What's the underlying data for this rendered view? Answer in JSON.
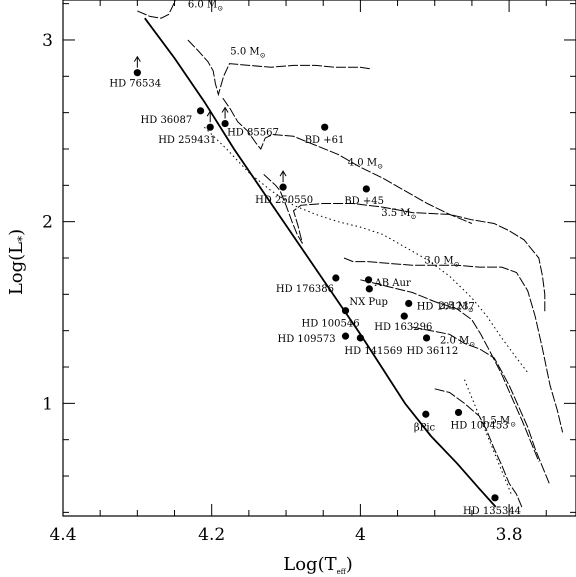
{
  "chart_data": {
    "type": "scatter",
    "title": "",
    "xlabel": "Log(T",
    "xlabel_sub": "eff",
    "xlabel_close": ")",
    "ylabel": "Log(L",
    "ylabel_sub": "*",
    "ylabel_close": ")",
    "xlim": [
      4.4,
      3.71
    ],
    "ylim": [
      0.38,
      3.22
    ],
    "x_reversed": true,
    "grid": false,
    "x_ticks": [
      {
        "value": 4.4,
        "label": "4.4"
      },
      {
        "value": 4.2,
        "label": "4.2"
      },
      {
        "value": 4.0,
        "label": "4"
      },
      {
        "value": 3.8,
        "label": "3.8"
      }
    ],
    "y_ticks": [
      {
        "value": 1,
        "label": "1"
      },
      {
        "value": 2,
        "label": "2"
      },
      {
        "value": 3,
        "label": "3"
      }
    ],
    "stars": [
      {
        "name": "HD 76534",
        "x": 4.3,
        "y": 2.82,
        "arrow": true
      },
      {
        "name": "HD 36087",
        "x": 4.215,
        "y": 2.61,
        "arrow": false
      },
      {
        "name": "HD 259431",
        "x": 4.202,
        "y": 2.52,
        "arrow": true
      },
      {
        "name": "HD 85567",
        "x": 4.182,
        "y": 2.54,
        "arrow": true
      },
      {
        "name": "BD +61",
        "x": 4.048,
        "y": 2.52,
        "arrow": false
      },
      {
        "name": "HD 250550",
        "x": 4.104,
        "y": 2.19,
        "arrow": true
      },
      {
        "name": "BD +45",
        "x": 3.992,
        "y": 2.18,
        "arrow": false
      },
      {
        "name": "HD 176386",
        "x": 4.033,
        "y": 1.69,
        "arrow": false
      },
      {
        "name": "AB Aur",
        "x": 3.989,
        "y": 1.68,
        "arrow": false
      },
      {
        "name": "NX Pup",
        "x": 3.988,
        "y": 1.63,
        "arrow": false
      },
      {
        "name": "HD 104237",
        "x": 3.935,
        "y": 1.55,
        "arrow": false
      },
      {
        "name": "HD 100546",
        "x": 4.02,
        "y": 1.51,
        "arrow": false
      },
      {
        "name": "HD 163296",
        "x": 3.941,
        "y": 1.48,
        "arrow": false
      },
      {
        "name": "HD 109573",
        "x": 4.02,
        "y": 1.37,
        "arrow": false
      },
      {
        "name": "HD 141569",
        "x": 4.0,
        "y": 1.36,
        "arrow": false
      },
      {
        "name": "HD 36112",
        "x": 3.911,
        "y": 1.36,
        "arrow": false
      },
      {
        "name": "βPic",
        "x": 3.912,
        "y": 0.94,
        "arrow": false
      },
      {
        "name": "HD 100453",
        "x": 3.868,
        "y": 0.95,
        "arrow": false
      },
      {
        "name": "HD 135344",
        "x": 3.819,
        "y": 0.48,
        "arrow": false
      }
    ],
    "tracks": [
      {
        "mass": "6.0 M",
        "sun": "⊙",
        "points": [
          [
            4.3,
            3.16
          ],
          [
            4.283,
            3.13
          ],
          [
            4.268,
            3.12
          ],
          [
            4.258,
            3.14
          ],
          [
            4.252,
            3.19
          ],
          [
            4.249,
            3.22
          ]
        ]
      },
      {
        "mass": "5.0 M",
        "sun": "⊙",
        "points": [
          [
            4.232,
            3.0
          ],
          [
            4.218,
            2.94
          ],
          [
            4.205,
            2.88
          ],
          [
            4.198,
            2.83
          ],
          [
            4.195,
            2.76
          ],
          [
            4.191,
            2.7
          ],
          [
            4.184,
            2.8
          ],
          [
            4.176,
            2.87
          ],
          [
            4.15,
            2.86
          ],
          [
            4.12,
            2.85
          ],
          [
            4.09,
            2.86
          ],
          [
            4.06,
            2.86
          ],
          [
            4.035,
            2.85
          ],
          [
            4.0,
            2.85
          ],
          [
            3.985,
            2.84
          ]
        ]
      },
      {
        "mass": "4.0 M",
        "sun": "⊙",
        "points": [
          [
            4.185,
            2.68
          ],
          [
            4.175,
            2.62
          ],
          [
            4.165,
            2.55
          ],
          [
            4.152,
            2.5
          ],
          [
            4.14,
            2.43
          ],
          [
            4.134,
            2.4
          ],
          [
            4.128,
            2.46
          ],
          [
            4.118,
            2.48
          ],
          [
            4.09,
            2.47
          ],
          [
            4.06,
            2.42
          ],
          [
            4.03,
            2.37
          ],
          [
            4.0,
            2.3
          ],
          [
            3.97,
            2.24
          ],
          [
            3.94,
            2.17
          ],
          [
            3.91,
            2.1
          ],
          [
            3.88,
            2.04
          ],
          [
            3.85,
            1.99
          ]
        ]
      },
      {
        "mass": "3.5 M",
        "sun": "⊙",
        "points": [
          [
            4.13,
            2.26
          ],
          [
            4.122,
            2.23
          ],
          [
            4.114,
            2.2
          ],
          [
            4.108,
            2.17
          ],
          [
            4.1,
            2.09
          ],
          [
            4.092,
            2.0
          ],
          [
            4.085,
            1.93
          ],
          [
            4.078,
            1.88
          ],
          [
            4.084,
            1.98
          ],
          [
            4.09,
            2.06
          ],
          [
            4.08,
            2.09
          ],
          [
            4.05,
            2.1
          ],
          [
            4.01,
            2.1
          ],
          [
            3.97,
            2.08
          ],
          [
            3.93,
            2.05
          ],
          [
            3.88,
            2.04
          ],
          [
            3.85,
            2.01
          ],
          [
            3.82,
            1.99
          ],
          [
            3.8,
            1.95
          ],
          [
            3.78,
            1.9
          ],
          [
            3.77,
            1.85
          ],
          [
            3.76,
            1.8
          ],
          [
            3.755,
            1.7
          ],
          [
            3.752,
            1.6
          ],
          [
            3.752,
            1.5
          ]
        ]
      },
      {
        "mass": "3.0 M",
        "sun": "⊙",
        "points": [
          [
            4.022,
            1.8
          ],
          [
            4.01,
            1.78
          ],
          [
            3.99,
            1.78
          ],
          [
            3.96,
            1.77
          ],
          [
            3.93,
            1.76
          ],
          [
            3.9,
            1.76
          ],
          [
            3.87,
            1.76
          ],
          [
            3.84,
            1.75
          ],
          [
            3.81,
            1.75
          ],
          [
            3.79,
            1.72
          ],
          [
            3.775,
            1.62
          ],
          [
            3.765,
            1.48
          ],
          [
            3.755,
            1.3
          ],
          [
            3.745,
            1.1
          ],
          [
            3.735,
            0.96
          ],
          [
            3.728,
            0.84
          ]
        ]
      },
      {
        "mass": "2.5 M",
        "sun": "⊙",
        "points": [
          [
            4.0,
            1.68
          ],
          [
            3.98,
            1.66
          ],
          [
            3.96,
            1.64
          ],
          [
            3.93,
            1.61
          ],
          [
            3.9,
            1.56
          ],
          [
            3.87,
            1.52
          ],
          [
            3.85,
            1.46
          ],
          [
            3.838,
            1.38
          ],
          [
            3.825,
            1.28
          ],
          [
            3.81,
            1.16
          ],
          [
            3.795,
            1.02
          ],
          [
            3.782,
            0.9
          ],
          [
            3.77,
            0.78
          ],
          [
            3.76,
            0.68
          ]
        ]
      },
      {
        "mass": "2.0 M",
        "sun": "⊙",
        "points": [
          [
            3.93,
            1.42
          ],
          [
            3.905,
            1.4
          ],
          [
            3.88,
            1.38
          ],
          [
            3.86,
            1.33
          ],
          [
            3.84,
            1.3
          ],
          [
            3.82,
            1.25
          ],
          [
            3.812,
            1.19
          ],
          [
            3.8,
            1.1
          ],
          [
            3.788,
            0.99
          ],
          [
            3.775,
            0.87
          ],
          [
            3.765,
            0.75
          ],
          [
            3.755,
            0.65
          ],
          [
            3.746,
            0.56
          ]
        ]
      },
      {
        "mass": "1.5 M",
        "sun": "⊙",
        "points": [
          [
            3.9,
            1.08
          ],
          [
            3.88,
            1.06
          ],
          [
            3.86,
            1.0
          ],
          [
            3.84,
            0.93
          ],
          [
            3.83,
            0.85
          ],
          [
            3.82,
            0.75
          ],
          [
            3.81,
            0.66
          ],
          [
            3.8,
            0.56
          ],
          [
            3.79,
            0.5
          ],
          [
            3.782,
            0.42
          ]
        ]
      }
    ],
    "isochrones": [
      {
        "points": [
          [
            4.21,
            2.52
          ],
          [
            4.18,
            2.4
          ],
          [
            4.15,
            2.27
          ],
          [
            4.12,
            2.17
          ],
          [
            4.09,
            2.09
          ],
          [
            4.06,
            2.04
          ],
          [
            4.03,
            2.0
          ],
          [
            4.0,
            1.97
          ],
          [
            3.97,
            1.93
          ],
          [
            3.94,
            1.86
          ],
          [
            3.91,
            1.79
          ],
          [
            3.88,
            1.7
          ],
          [
            3.85,
            1.58
          ],
          [
            3.83,
            1.48
          ],
          [
            3.81,
            1.36
          ],
          [
            3.79,
            1.25
          ],
          [
            3.775,
            1.17
          ]
        ]
      },
      {
        "points": [
          [
            3.86,
            1.13
          ],
          [
            3.845,
            0.98
          ],
          [
            3.835,
            0.88
          ],
          [
            3.825,
            0.78
          ],
          [
            3.815,
            0.68
          ],
          [
            3.805,
            0.58
          ],
          [
            3.797,
            0.5
          ]
        ]
      }
    ],
    "zams": {
      "points": [
        [
          4.29,
          3.12
        ],
        [
          4.25,
          2.9
        ],
        [
          4.21,
          2.66
        ],
        [
          4.17,
          2.4
        ],
        [
          4.13,
          2.16
        ],
        [
          4.1,
          1.98
        ],
        [
          4.065,
          1.77
        ],
        [
          4.03,
          1.56
        ],
        [
          4.0,
          1.38
        ],
        [
          3.97,
          1.19
        ],
        [
          3.94,
          1.0
        ],
        [
          3.905,
          0.82
        ],
        [
          3.87,
          0.67
        ],
        [
          3.84,
          0.53
        ],
        [
          3.818,
          0.43
        ]
      ]
    }
  }
}
